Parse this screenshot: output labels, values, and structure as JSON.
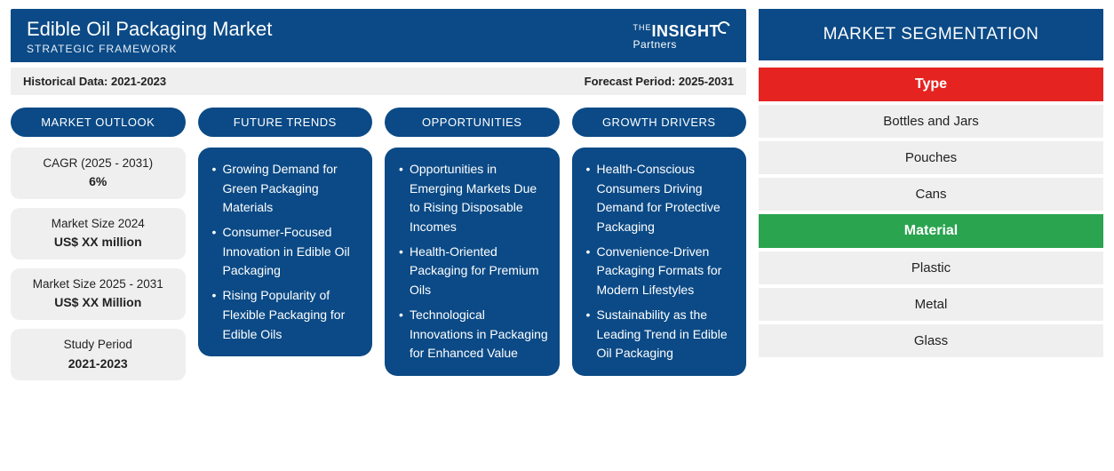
{
  "colors": {
    "primary": "#0b4a86",
    "light": "#efefef",
    "type_cat": "#e52421",
    "material_cat": "#2aa44f",
    "text": "#222222",
    "white": "#ffffff"
  },
  "header": {
    "title": "Edible Oil Packaging Market",
    "subtitle": "STRATEGIC FRAMEWORK",
    "logo_prefix": "THE",
    "logo_main": "INSIGHT",
    "logo_sub": "Partners"
  },
  "periods": {
    "historical_label": "Historical Data: 2021-2023",
    "forecast_label": "Forecast Period: 2025-2031"
  },
  "columns": {
    "outlook": {
      "heading": "MARKET OUTLOOK",
      "items": [
        {
          "label": "CAGR (2025 - 2031)",
          "value": "6%"
        },
        {
          "label": "Market Size 2024",
          "value": "US$ XX million"
        },
        {
          "label": "Market Size 2025 - 2031",
          "value": "US$ XX Million"
        },
        {
          "label": "Study Period",
          "value": "2021-2023"
        }
      ]
    },
    "trends": {
      "heading": "FUTURE TRENDS",
      "bullets": [
        "Growing Demand for Green Packaging Materials",
        "Consumer-Focused Innovation in Edible Oil Packaging",
        "Rising Popularity of Flexible Packaging for Edible Oils"
      ]
    },
    "opportunities": {
      "heading": "OPPORTUNITIES",
      "bullets": [
        "Opportunities in Emerging Markets Due to Rising Disposable Incomes",
        "Health-Oriented Packaging for Premium Oils",
        "Technological Innovations in Packaging for Enhanced Value"
      ]
    },
    "drivers": {
      "heading": "GROWTH DRIVERS",
      "bullets": [
        "Health-Conscious Consumers Driving Demand for Protective Packaging",
        "Convenience-Driven Packaging Formats for Modern Lifestyles",
        "Sustainability as the Leading Trend in Edible Oil Packaging"
      ]
    }
  },
  "segmentation": {
    "heading": "MARKET SEGMENTATION",
    "groups": [
      {
        "category": "Type",
        "color": "#e52421",
        "items": [
          "Bottles and Jars",
          "Pouches",
          "Cans"
        ]
      },
      {
        "category": "Material",
        "color": "#2aa44f",
        "items": [
          "Plastic",
          "Metal",
          "Glass"
        ]
      }
    ]
  }
}
